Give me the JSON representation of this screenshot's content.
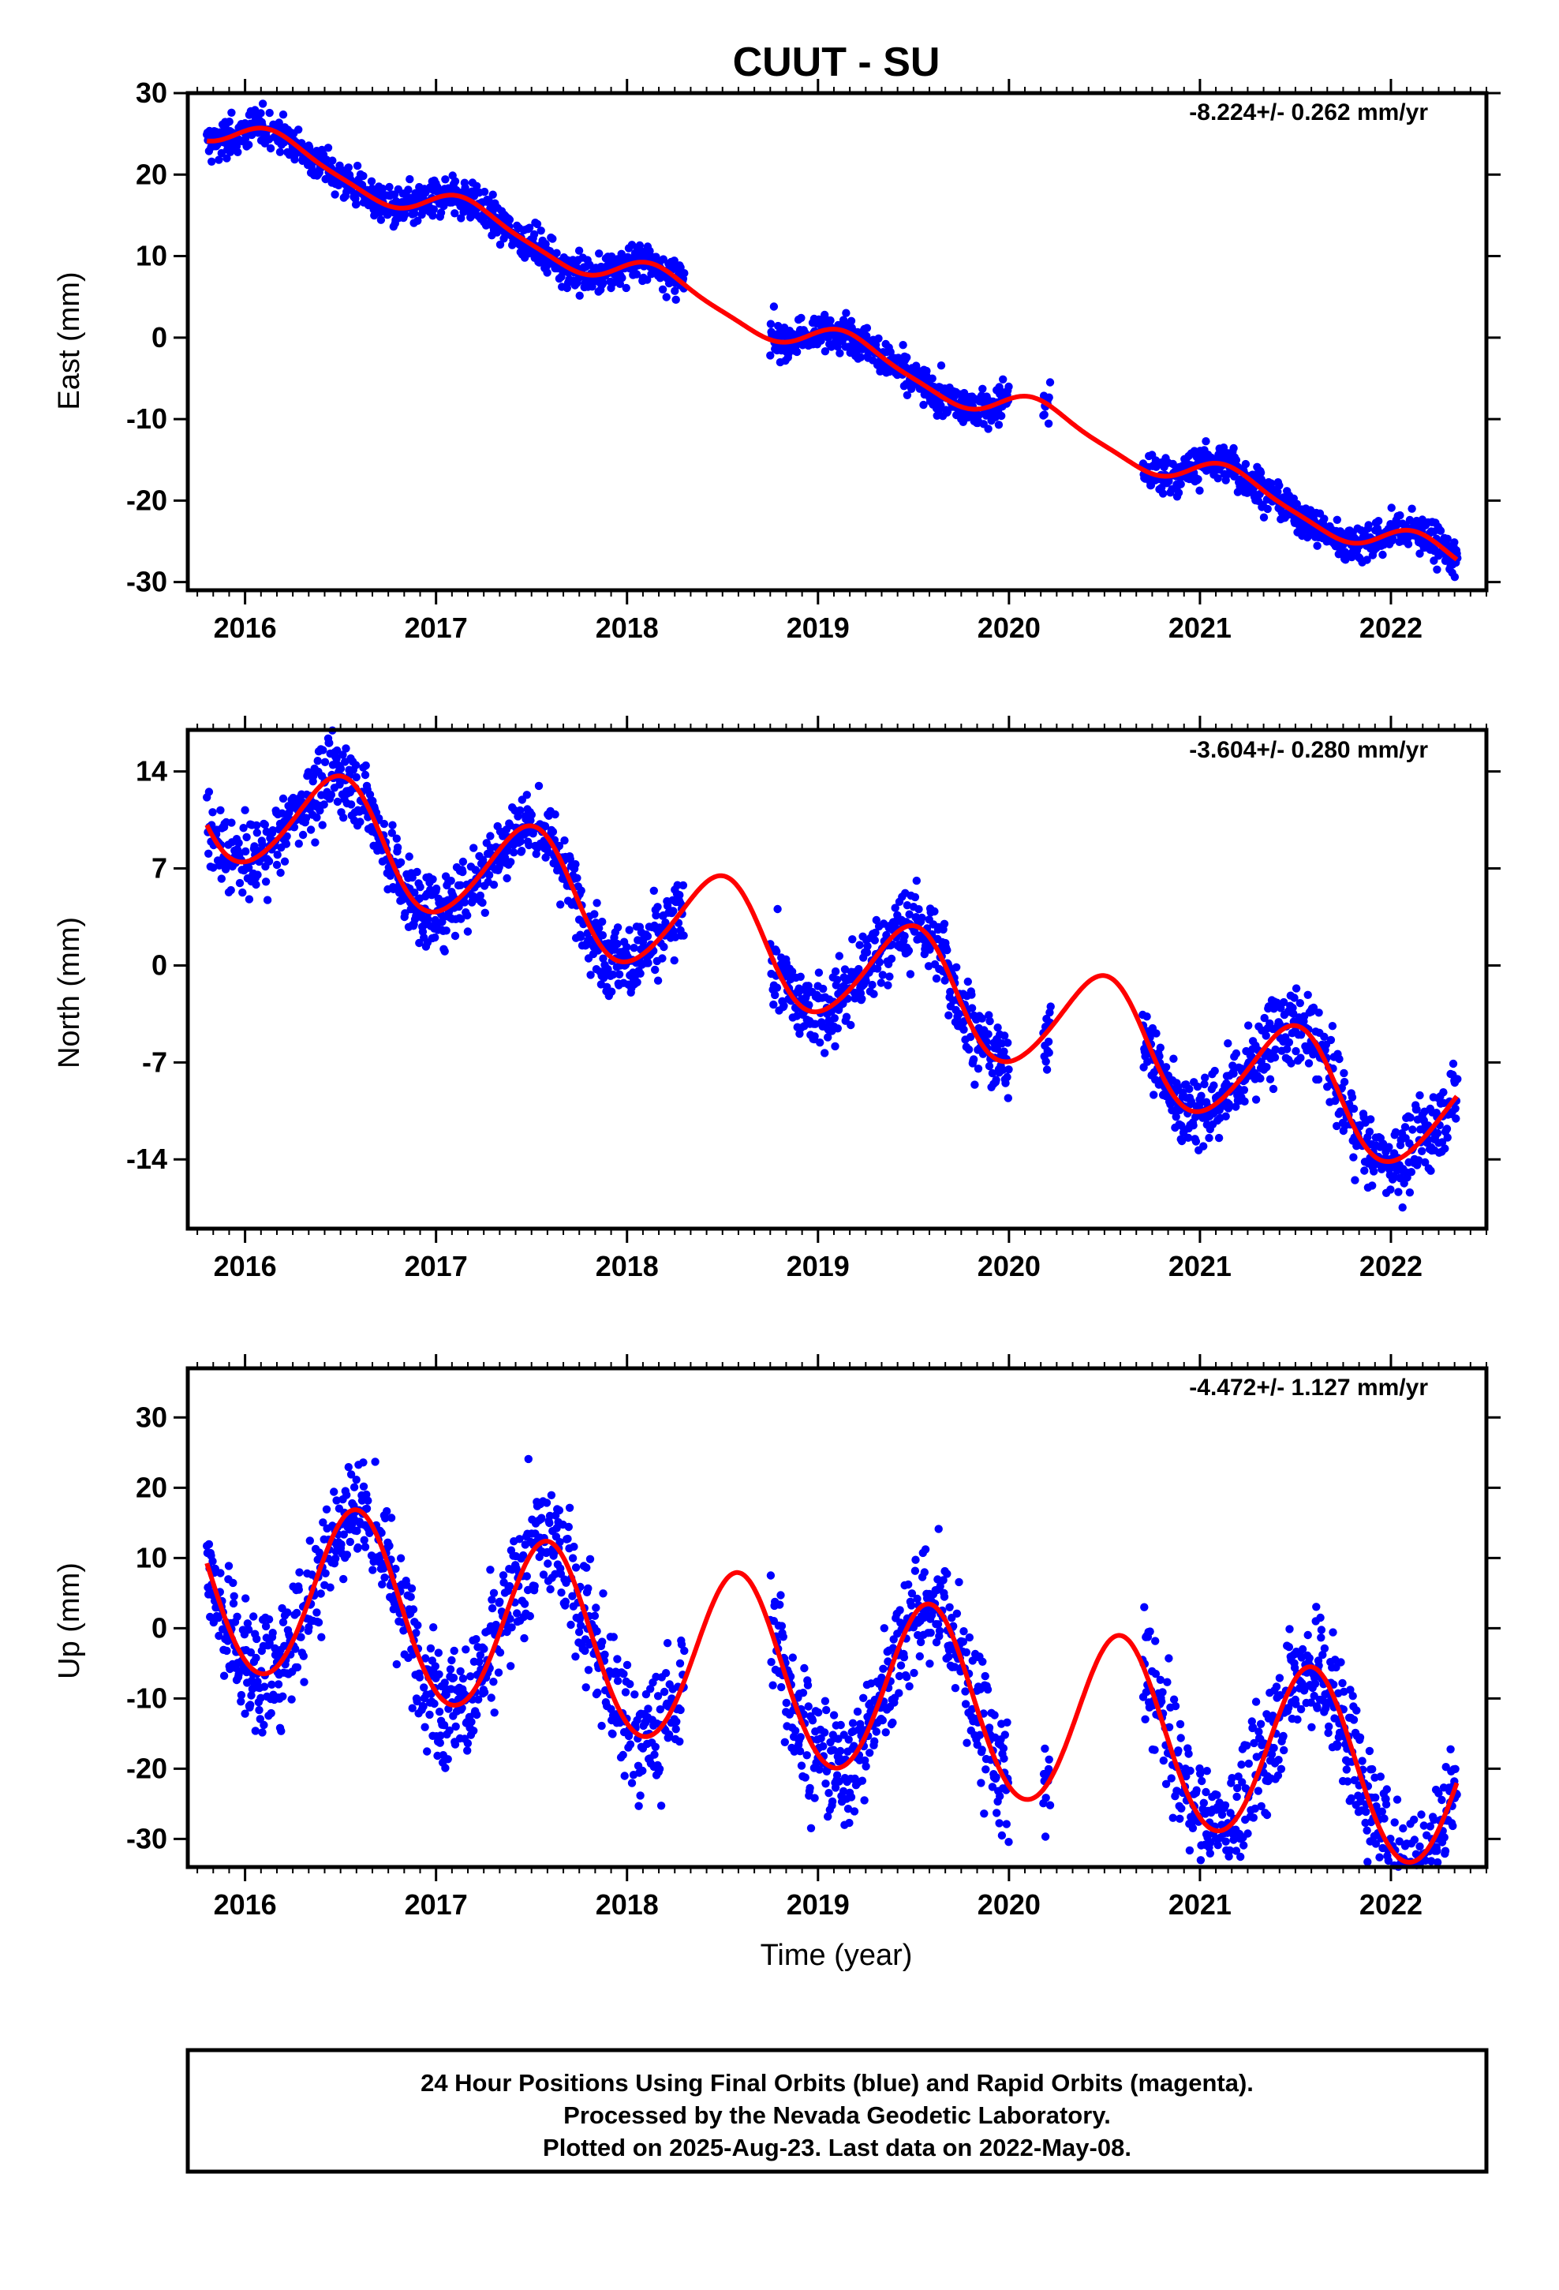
{
  "title": "CUUT - SU",
  "xlabel": "Time (year)",
  "footer": {
    "line1": "24 Hour Positions Using Final Orbits (blue) and Rapid Orbits (magenta).",
    "line2": "Processed by the Nevada Geodetic Laboratory.",
    "line3": "Plotted on 2025-Aug-23. Last data on 2022-May-08."
  },
  "colors": {
    "data": "#0000ff",
    "model": "#ff0000",
    "axis": "#000000"
  },
  "chart_data": [
    {
      "type": "scatter",
      "ylabel": "East (mm)",
      "rate_label": "-8.224+/- 0.262 mm/yr",
      "xlim": [
        2015.7,
        2022.5
      ],
      "ylim": [
        -31,
        30
      ],
      "xticks": [
        2016,
        2017,
        2018,
        2019,
        2020,
        2021,
        2022
      ],
      "yticks": [
        -30,
        -20,
        -10,
        0,
        10,
        20,
        30
      ],
      "model": {
        "t0": 2015.8,
        "y0": 26.0,
        "trend": -8.224,
        "annual_sin": 1.8,
        "annual_cos": 0.8,
        "semi_sin": 0.4,
        "semi_cos": 0.2,
        "x_end": 2022.35
      },
      "data_spans": [
        [
          2015.8,
          2018.3
        ],
        [
          2018.75,
          2020.0
        ],
        [
          2020.18,
          2020.22
        ],
        [
          2020.7,
          2022.35
        ]
      ],
      "noise_sd": 1.2
    },
    {
      "type": "scatter",
      "ylabel": "North (mm)",
      "rate_label": "-3.604+/- 0.280 mm/yr",
      "xlim": [
        2015.7,
        2022.5
      ],
      "ylim": [
        -19,
        17
      ],
      "xticks": [
        2016,
        2017,
        2018,
        2019,
        2020,
        2021,
        2022
      ],
      "yticks": [
        -14,
        -7,
        0,
        7,
        14
      ],
      "model": {
        "t0": 2015.8,
        "y0": 12.0,
        "trend": -3.604,
        "annual_sin": 0.3,
        "annual_cos": -4.0,
        "semi_sin": 0.3,
        "semi_cos": 0.2,
        "x_end": 2022.35
      },
      "data_spans": [
        [
          2015.8,
          2018.3
        ],
        [
          2018.75,
          2020.0
        ],
        [
          2020.18,
          2020.22
        ],
        [
          2020.7,
          2022.35
        ]
      ],
      "noise_sd": 1.4
    },
    {
      "type": "scatter",
      "ylabel": "Up (mm)",
      "rate_label": "-4.472+/- 1.127 mm/yr",
      "xlim": [
        2015.7,
        2022.5
      ],
      "ylim": [
        -34,
        37
      ],
      "xticks": [
        2016,
        2017,
        2018,
        2019,
        2020,
        2021,
        2022
      ],
      "yticks": [
        -30,
        -20,
        -10,
        0,
        10,
        20,
        30
      ],
      "model": {
        "t0": 2015.8,
        "y0": 7.0,
        "trend": -4.472,
        "annual_sin": -6.5,
        "annual_cos": -11.0,
        "semi_sin": 0.5,
        "semi_cos": 0.3,
        "x_end": 2022.35
      },
      "data_spans": [
        [
          2015.8,
          2018.3
        ],
        [
          2018.75,
          2020.0
        ],
        [
          2020.18,
          2020.22
        ],
        [
          2020.7,
          2022.35
        ]
      ],
      "noise_sd": 4.5
    }
  ]
}
